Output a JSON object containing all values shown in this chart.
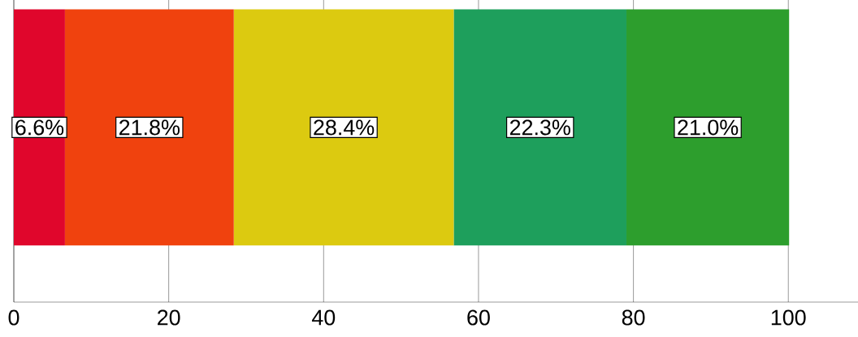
{
  "chart_data": {
    "type": "bar",
    "orientation": "horizontal",
    "stacked": true,
    "categories": [
      null
    ],
    "series": [
      {
        "color": "#e0062c",
        "values": [
          6.6
        ],
        "value_labels": [
          "6.6%"
        ]
      },
      {
        "color": "#f0420e",
        "values": [
          21.8
        ],
        "value_labels": [
          "21.8%"
        ]
      },
      {
        "color": "#dcca10",
        "values": [
          28.4
        ],
        "value_labels": [
          "28.4%"
        ]
      },
      {
        "color": "#1e9f5c",
        "values": [
          22.3
        ],
        "value_labels": [
          "22.3%"
        ]
      },
      {
        "color": "#2d9e2d",
        "values": [
          21.0
        ],
        "value_labels": [
          "21.0%"
        ]
      }
    ],
    "xlim": [
      0,
      109
    ],
    "xticks": [
      0,
      20,
      40,
      60,
      80,
      100
    ],
    "grid": "x"
  }
}
